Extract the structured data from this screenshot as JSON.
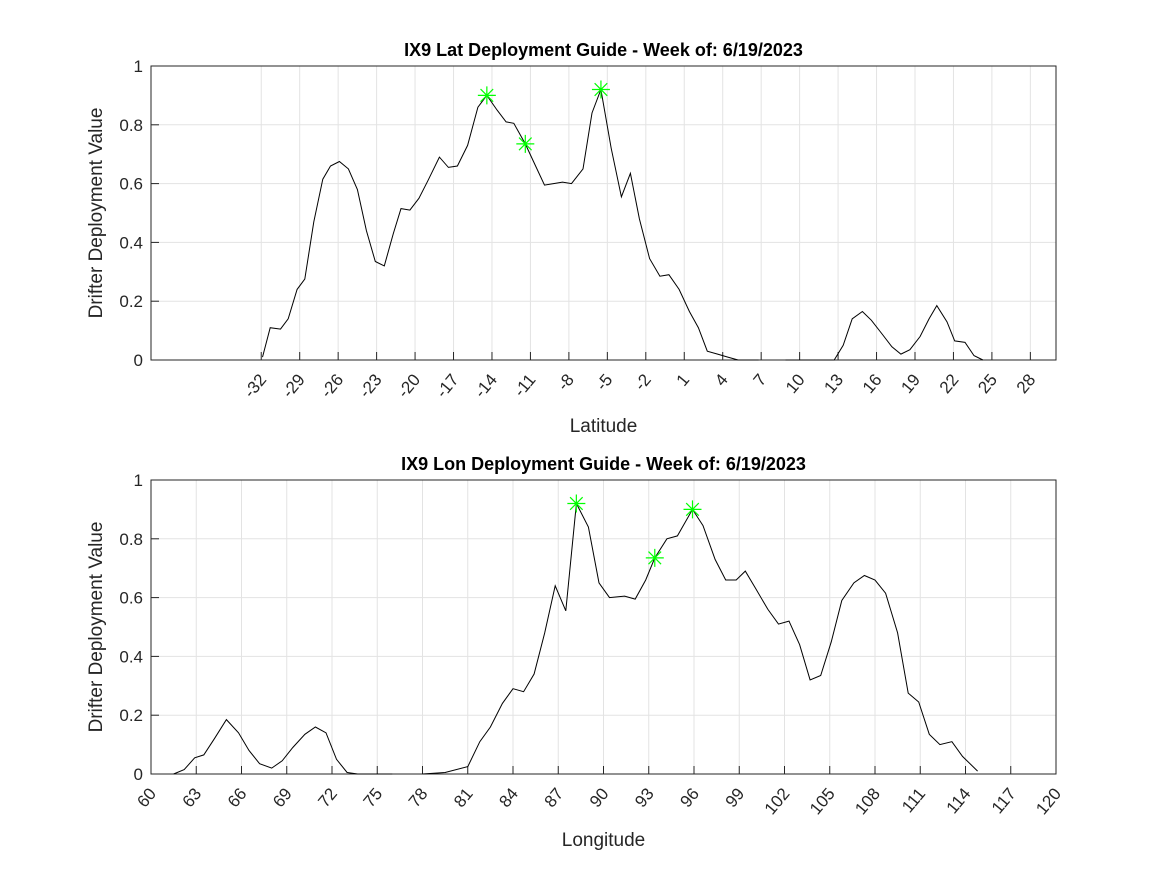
{
  "chart_data": [
    {
      "type": "line",
      "title": "IX9 Lat Deployment Guide - Week of: 6/19/2023",
      "xlabel": "Latitude",
      "ylabel": "Drifter Deployment Value",
      "x": [
        -31.9,
        -31.3,
        -30.5,
        -29.9,
        -29.2,
        -28.6,
        -27.9,
        -27.2,
        -26.6,
        -25.9,
        -25.2,
        -24.5,
        -23.8,
        -23.1,
        -22.4,
        -21.7,
        -21.1,
        -20.4,
        -19.7,
        -19,
        -18.1,
        -17.4,
        -16.7,
        -15.9,
        -15.1,
        -14.4,
        -13.6,
        -12.9,
        -12.3,
        -11.4,
        -10.6,
        -9.9,
        -9.2,
        -8.5,
        -7.8,
        -6.9,
        -6.2,
        -5.5,
        -4.7,
        -3.9,
        -3.2,
        -2.5,
        -1.7,
        -0.9,
        -0.2,
        0.6,
        1.4,
        2.1,
        2.8,
        3.6,
        4.4,
        5.2,
        6.8,
        7.8,
        8.9,
        10.4,
        12.7,
        13.4,
        14.1,
        14.9,
        15.6,
        16.4,
        17.2,
        17.9,
        18.6,
        19.4,
        20.1,
        20.7,
        21.5,
        22.1,
        22.9,
        23.6,
        24.3
      ],
      "values": [
        0.01,
        0.11,
        0.105,
        0.14,
        0.24,
        0.275,
        0.47,
        0.615,
        0.66,
        0.675,
        0.65,
        0.58,
        0.44,
        0.335,
        0.32,
        0.43,
        0.515,
        0.51,
        0.55,
        0.61,
        0.69,
        0.655,
        0.66,
        0.73,
        0.86,
        0.9,
        0.85,
        0.81,
        0.805,
        0.735,
        0.66,
        0.595,
        0.6,
        0.605,
        0.6,
        0.65,
        0.84,
        0.92,
        0.72,
        0.555,
        0.635,
        0.48,
        0.345,
        0.285,
        0.29,
        0.24,
        0.165,
        0.11,
        0.03,
        0.02,
        0.01,
        0,
        0,
        null,
        0,
        0,
        0,
        0.05,
        0.14,
        0.165,
        0.135,
        0.09,
        0.045,
        0.02,
        0.035,
        0.08,
        0.14,
        0.185,
        0.13,
        0.065,
        0.06,
        0.015,
        0
      ],
      "color": "#000000",
      "highlights": {
        "x": [
          -14.4,
          -11.4,
          -5.5
        ],
        "values": [
          0.9,
          0.735,
          0.92
        ],
        "color": "#00ff00"
      },
      "xlim": [
        -40.6,
        30
      ],
      "xticks": [
        -32,
        -29,
        -26,
        -23,
        -20,
        -17,
        -14,
        -11,
        -8,
        -5,
        -2,
        1,
        4,
        7,
        10,
        13,
        16,
        19,
        22,
        25,
        28
      ],
      "ylim": [
        0,
        1
      ],
      "yticks": [
        0,
        0.2,
        0.4,
        0.6,
        0.8,
        1
      ],
      "grid": true
    },
    {
      "type": "line",
      "title": "IX9 Lon Deployment Guide - Week of: 6/19/2023",
      "xlabel": "Longitude",
      "ylabel": "Drifter Deployment Value",
      "x": [
        61.5,
        62.2,
        62.9,
        63.5,
        64.2,
        65,
        65.8,
        66.5,
        67.2,
        68,
        68.7,
        69.4,
        70.2,
        70.9,
        71.6,
        72.3,
        73,
        73.7,
        76,
        77.5,
        78,
        79.5,
        81,
        81.8,
        82.5,
        83.3,
        84,
        84.7,
        85.4,
        86.1,
        86.8,
        87.5,
        88.2,
        89,
        89.7,
        90.4,
        91.4,
        92.1,
        92.8,
        93.4,
        94.2,
        94.9,
        95.9,
        96.6,
        97.4,
        98.1,
        98.8,
        99.4,
        100.1,
        100.9,
        101.6,
        102.3,
        103,
        103.7,
        104.4,
        105.1,
        105.8,
        106.6,
        107.3,
        108,
        108.7,
        109.5,
        110.2,
        110.9,
        111.6,
        112.3,
        113.1,
        113.8,
        114.8
      ],
      "values": [
        0,
        0.015,
        0.055,
        0.065,
        0.12,
        0.185,
        0.14,
        0.08,
        0.035,
        0.02,
        0.045,
        0.09,
        0.135,
        0.16,
        0.14,
        0.05,
        0.005,
        0,
        0,
        null,
        0,
        0.005,
        0.025,
        0.11,
        0.16,
        0.24,
        0.29,
        0.28,
        0.34,
        0.48,
        0.64,
        0.555,
        0.92,
        0.84,
        0.65,
        0.6,
        0.605,
        0.595,
        0.66,
        0.735,
        0.8,
        0.81,
        0.9,
        0.845,
        0.73,
        0.66,
        0.66,
        0.69,
        0.63,
        0.56,
        0.51,
        0.52,
        0.44,
        0.32,
        0.335,
        0.45,
        0.59,
        0.65,
        0.675,
        0.66,
        0.615,
        0.48,
        0.275,
        0.245,
        0.135,
        0.1,
        0.11,
        0.06,
        0.01
      ],
      "color": "#000000",
      "highlights": {
        "x": [
          88.2,
          93.4,
          95.9
        ],
        "values": [
          0.92,
          0.735,
          0.9
        ],
        "color": "#00ff00"
      },
      "xlim": [
        60,
        120
      ],
      "xticks": [
        60,
        63,
        66,
        69,
        72,
        75,
        78,
        81,
        84,
        87,
        90,
        93,
        96,
        99,
        102,
        105,
        108,
        111,
        114,
        117,
        120
      ],
      "ylim": [
        0,
        1
      ],
      "yticks": [
        0,
        0.2,
        0.4,
        0.6,
        0.8,
        1
      ],
      "grid": true
    }
  ]
}
